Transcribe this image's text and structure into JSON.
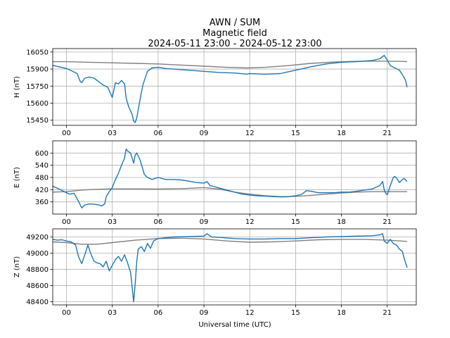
{
  "figure": {
    "title_lines": [
      "AWN / SUM",
      "Magnetic field",
      "2024-05-11 23:00 - 2024-05-12 23:00"
    ],
    "xlabel": "Universal time (UTC)",
    "x_tick_labels": [
      "00",
      "03",
      "06",
      "09",
      "12",
      "15",
      "18",
      "21"
    ]
  },
  "colors": {
    "data_series": "#1f77b4",
    "reference_series": "#808080",
    "grid": "#b0b0b0"
  },
  "chart_data": [
    {
      "type": "line",
      "panel": "H",
      "ylabel": "H (nT)",
      "xlim": [
        -0.9,
        22.9
      ],
      "ylim": [
        15405,
        16080
      ],
      "y_ticks": [
        15450,
        15600,
        15750,
        15900,
        16050
      ],
      "series": [
        {
          "name": "H",
          "points": [
            [
              -1.0,
              15935
            ],
            [
              -0.5,
              15920
            ],
            [
              0.0,
              15905
            ],
            [
              0.4,
              15880
            ],
            [
              0.7,
              15860
            ],
            [
              0.9,
              15790
            ],
            [
              1.0,
              15780
            ],
            [
              1.2,
              15820
            ],
            [
              1.5,
              15830
            ],
            [
              1.8,
              15820
            ],
            [
              2.1,
              15790
            ],
            [
              2.4,
              15760
            ],
            [
              2.7,
              15740
            ],
            [
              2.9,
              15680
            ],
            [
              3.0,
              15650
            ],
            [
              3.2,
              15780
            ],
            [
              3.4,
              15770
            ],
            [
              3.6,
              15800
            ],
            [
              3.8,
              15770
            ],
            [
              3.9,
              15650
            ],
            [
              4.0,
              15600
            ],
            [
              4.1,
              15560
            ],
            [
              4.3,
              15500
            ],
            [
              4.4,
              15440
            ],
            [
              4.5,
              15430
            ],
            [
              4.6,
              15470
            ],
            [
              4.8,
              15620
            ],
            [
              5.0,
              15760
            ],
            [
              5.3,
              15880
            ],
            [
              5.6,
              15910
            ],
            [
              6.0,
              15915
            ],
            [
              6.5,
              15905
            ],
            [
              7.0,
              15900
            ],
            [
              8.0,
              15890
            ],
            [
              9.0,
              15880
            ],
            [
              10.0,
              15870
            ],
            [
              11.0,
              15865
            ],
            [
              11.8,
              15855
            ],
            [
              12.0,
              15860
            ],
            [
              13.0,
              15855
            ],
            [
              14.0,
              15860
            ],
            [
              14.5,
              15875
            ],
            [
              15.0,
              15890
            ],
            [
              15.5,
              15905
            ],
            [
              16.0,
              15920
            ],
            [
              17.0,
              15945
            ],
            [
              18.0,
              15960
            ],
            [
              19.0,
              15965
            ],
            [
              20.0,
              15975
            ],
            [
              20.5,
              15990
            ],
            [
              20.8,
              16020
            ],
            [
              21.0,
              15980
            ],
            [
              21.2,
              15930
            ],
            [
              21.5,
              15910
            ],
            [
              21.8,
              15890
            ],
            [
              22.0,
              15850
            ],
            [
              22.2,
              15800
            ],
            [
              22.3,
              15740
            ]
          ]
        },
        {
          "name": "H reference",
          "points": [
            [
              -1.0,
              15965
            ],
            [
              0.0,
              15965
            ],
            [
              1.5,
              15960
            ],
            [
              3.0,
              15955
            ],
            [
              4.5,
              15950
            ],
            [
              6.0,
              15945
            ],
            [
              7.5,
              15935
            ],
            [
              9.0,
              15925
            ],
            [
              10.5,
              15915
            ],
            [
              11.8,
              15910
            ],
            [
              13.0,
              15915
            ],
            [
              14.5,
              15930
            ],
            [
              16.0,
              15950
            ],
            [
              17.5,
              15962
            ],
            [
              19.0,
              15968
            ],
            [
              20.5,
              15970
            ],
            [
              22.0,
              15967
            ],
            [
              22.3,
              15965
            ]
          ]
        }
      ]
    },
    {
      "type": "line",
      "panel": "E",
      "ylabel": "E (nT)",
      "xlim": [
        -0.9,
        22.9
      ],
      "ylim": [
        300,
        660
      ],
      "y_ticks": [
        360,
        420,
        480,
        540,
        600
      ],
      "series": [
        {
          "name": "E",
          "points": [
            [
              -1.0,
              440
            ],
            [
              -0.7,
              430
            ],
            [
              -0.4,
              420
            ],
            [
              -0.1,
              408
            ],
            [
              0.2,
              398
            ],
            [
              0.5,
              402
            ],
            [
              0.7,
              375
            ],
            [
              0.9,
              345
            ],
            [
              1.0,
              330
            ],
            [
              1.2,
              345
            ],
            [
              1.5,
              350
            ],
            [
              1.8,
              348
            ],
            [
              2.1,
              345
            ],
            [
              2.3,
              340
            ],
            [
              2.5,
              350
            ],
            [
              2.6,
              385
            ],
            [
              2.8,
              410
            ],
            [
              3.0,
              430
            ],
            [
              3.2,
              470
            ],
            [
              3.4,
              500
            ],
            [
              3.6,
              540
            ],
            [
              3.8,
              575
            ],
            [
              3.9,
              620
            ],
            [
              4.0,
              610
            ],
            [
              4.2,
              600
            ],
            [
              4.4,
              550
            ],
            [
              4.5,
              590
            ],
            [
              4.6,
              600
            ],
            [
              4.8,
              570
            ],
            [
              5.0,
              520
            ],
            [
              5.1,
              495
            ],
            [
              5.3,
              480
            ],
            [
              5.6,
              470
            ],
            [
              6.0,
              480
            ],
            [
              6.5,
              470
            ],
            [
              7.0,
              470
            ],
            [
              7.5,
              468
            ],
            [
              8.0,
              462
            ],
            [
              8.5,
              455
            ],
            [
              9.0,
              452
            ],
            [
              9.2,
              460
            ],
            [
              9.4,
              440
            ],
            [
              9.7,
              435
            ],
            [
              10.0,
              428
            ],
            [
              10.5,
              418
            ],
            [
              11.0,
              408
            ],
            [
              11.5,
              398
            ],
            [
              12.0,
              393
            ],
            [
              12.5,
              390
            ],
            [
              13.0,
              388
            ],
            [
              13.5,
              386
            ],
            [
              14.0,
              384
            ],
            [
              14.5,
              385
            ],
            [
              15.0,
              390
            ],
            [
              15.4,
              397
            ],
            [
              15.7,
              415
            ],
            [
              16.0,
              412
            ],
            [
              16.5,
              405
            ],
            [
              17.0,
              405
            ],
            [
              17.5,
              405
            ],
            [
              18.0,
              408
            ],
            [
              18.5,
              408
            ],
            [
              19.0,
              412
            ],
            [
              19.5,
              418
            ],
            [
              20.0,
              423
            ],
            [
              20.5,
              440
            ],
            [
              20.7,
              460
            ],
            [
              20.8,
              420
            ],
            [
              20.9,
              402
            ],
            [
              21.0,
              395
            ],
            [
              21.2,
              440
            ],
            [
              21.4,
              480
            ],
            [
              21.5,
              485
            ],
            [
              21.6,
              478
            ],
            [
              21.8,
              455
            ],
            [
              22.0,
              470
            ],
            [
              22.1,
              475
            ],
            [
              22.3,
              460
            ]
          ]
        },
        {
          "name": "E reference",
          "points": [
            [
              -1.0,
              408
            ],
            [
              0.0,
              410
            ],
            [
              1.0,
              418
            ],
            [
              2.0,
              422
            ],
            [
              3.0,
              424
            ],
            [
              4.5,
              424
            ],
            [
              6.0,
              423
            ],
            [
              7.5,
              425
            ],
            [
              9.0,
              430
            ],
            [
              10.0,
              423
            ],
            [
              11.0,
              408
            ],
            [
              12.0,
              398
            ],
            [
              13.0,
              390
            ],
            [
              14.0,
              386
            ],
            [
              15.0,
              387
            ],
            [
              16.0,
              392
            ],
            [
              17.0,
              398
            ],
            [
              18.0,
              404
            ],
            [
              19.0,
              408
            ],
            [
              20.0,
              410
            ],
            [
              21.0,
              410
            ],
            [
              22.3,
              410
            ]
          ]
        }
      ]
    },
    {
      "type": "line",
      "panel": "Z",
      "ylabel": "Z (nT)",
      "xlim": [
        -0.9,
        22.9
      ],
      "ylim": [
        48360,
        49300
      ],
      "y_ticks": [
        48400,
        48600,
        48800,
        49000,
        49200
      ],
      "series": [
        {
          "name": "Z",
          "points": [
            [
              -1.0,
              49175
            ],
            [
              -0.6,
              49160
            ],
            [
              -0.3,
              49165
            ],
            [
              0.0,
              49150
            ],
            [
              0.3,
              49140
            ],
            [
              0.6,
              49100
            ],
            [
              0.8,
              48950
            ],
            [
              1.0,
              48870
            ],
            [
              1.2,
              48980
            ],
            [
              1.4,
              49100
            ],
            [
              1.6,
              48990
            ],
            [
              1.8,
              48900
            ],
            [
              2.0,
              48880
            ],
            [
              2.2,
              48870
            ],
            [
              2.4,
              48830
            ],
            [
              2.6,
              48900
            ],
            [
              2.8,
              48780
            ],
            [
              3.0,
              48850
            ],
            [
              3.2,
              48920
            ],
            [
              3.4,
              48960
            ],
            [
              3.6,
              48900
            ],
            [
              3.8,
              48980
            ],
            [
              4.0,
              48880
            ],
            [
              4.2,
              48760
            ],
            [
              4.3,
              48570
            ],
            [
              4.4,
              48400
            ],
            [
              4.5,
              48620
            ],
            [
              4.6,
              48900
            ],
            [
              4.7,
              49050
            ],
            [
              4.9,
              49080
            ],
            [
              5.1,
              49020
            ],
            [
              5.3,
              49120
            ],
            [
              5.5,
              49060
            ],
            [
              5.7,
              49150
            ],
            [
              6.0,
              49180
            ],
            [
              6.5,
              49190
            ],
            [
              7.0,
              49200
            ],
            [
              8.0,
              49205
            ],
            [
              9.0,
              49210
            ],
            [
              9.2,
              49240
            ],
            [
              9.5,
              49200
            ],
            [
              10.0,
              49195
            ],
            [
              11.0,
              49180
            ],
            [
              12.0,
              49175
            ],
            [
              13.0,
              49175
            ],
            [
              14.0,
              49180
            ],
            [
              15.0,
              49180
            ],
            [
              16.0,
              49190
            ],
            [
              17.0,
              49200
            ],
            [
              18.0,
              49205
            ],
            [
              19.0,
              49210
            ],
            [
              20.0,
              49215
            ],
            [
              20.5,
              49225
            ],
            [
              20.7,
              49240
            ],
            [
              20.8,
              49150
            ],
            [
              21.0,
              49120
            ],
            [
              21.2,
              49170
            ],
            [
              21.4,
              49120
            ],
            [
              21.6,
              49100
            ],
            [
              21.8,
              49050
            ],
            [
              22.0,
              49020
            ],
            [
              22.1,
              48940
            ],
            [
              22.3,
              48820
            ]
          ]
        },
        {
          "name": "Z reference",
          "points": [
            [
              -1.0,
              49140
            ],
            [
              0.0,
              49130
            ],
            [
              1.0,
              49110
            ],
            [
              2.0,
              49110
            ],
            [
              3.0,
              49130
            ],
            [
              4.5,
              49160
            ],
            [
              6.0,
              49180
            ],
            [
              7.5,
              49185
            ],
            [
              9.0,
              49175
            ],
            [
              10.5,
              49150
            ],
            [
              12.0,
              49135
            ],
            [
              13.5,
              49140
            ],
            [
              15.0,
              49150
            ],
            [
              16.5,
              49165
            ],
            [
              18.0,
              49170
            ],
            [
              19.5,
              49170
            ],
            [
              21.0,
              49160
            ],
            [
              22.3,
              49145
            ]
          ]
        }
      ]
    }
  ]
}
